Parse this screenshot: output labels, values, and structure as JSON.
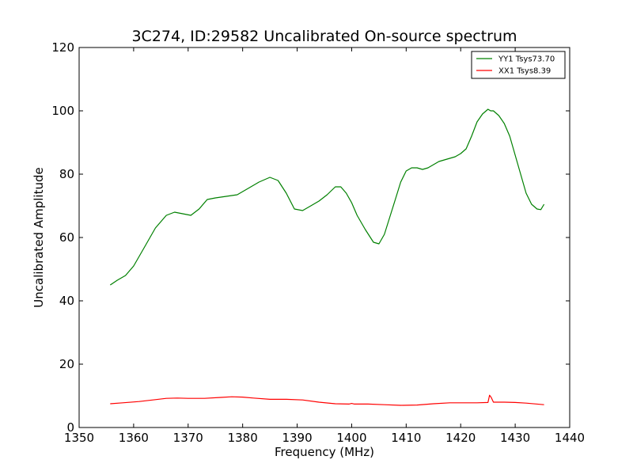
{
  "chart_data": {
    "type": "line",
    "title": "3C274, ID:29582 Uncalibrated On-source spectrum",
    "xlabel": "Frequency (MHz)",
    "ylabel": "Uncalibrated Amplitude",
    "xlim": [
      1350,
      1440
    ],
    "ylim": [
      0,
      120
    ],
    "x_ticks": [
      "1350",
      "1360",
      "1370",
      "1380",
      "1390",
      "1400",
      "1410",
      "1420",
      "1430",
      "1440"
    ],
    "y_ticks": [
      "0",
      "20",
      "40",
      "60",
      "80",
      "100",
      "120"
    ],
    "grid": false,
    "legend_position": "top-right",
    "series": [
      {
        "name": "YY1 Tsys73.70",
        "color": "#008000",
        "x": [
          1355.7,
          1357,
          1358.5,
          1360,
          1362,
          1364,
          1366,
          1367.5,
          1369,
          1370.5,
          1372,
          1373.5,
          1375,
          1377,
          1379,
          1381,
          1383,
          1385,
          1386.5,
          1388,
          1389.5,
          1391,
          1392.5,
          1394,
          1395.5,
          1397,
          1398,
          1399,
          1400,
          1401,
          1402.5,
          1404,
          1405,
          1406,
          1407,
          1408,
          1409,
          1410,
          1411,
          1412,
          1413,
          1414,
          1415,
          1416,
          1418,
          1419,
          1420,
          1421,
          1422,
          1423,
          1424,
          1425,
          1425.5,
          1426,
          1427,
          1428,
          1429,
          1430,
          1431,
          1432,
          1433,
          1434,
          1434.7,
          1435.3
        ],
        "values": [
          45,
          46.5,
          48,
          51,
          57,
          63,
          67,
          68,
          67.5,
          67,
          69,
          72,
          72.5,
          73,
          73.5,
          75.5,
          77.5,
          79,
          78,
          74,
          69,
          68.5,
          70,
          71.5,
          73.5,
          76,
          76,
          74,
          71,
          67,
          62.5,
          58.5,
          58,
          61,
          66.5,
          72,
          77.5,
          81,
          82,
          82,
          81.5,
          82,
          83,
          84,
          85,
          85.5,
          86.5,
          88,
          92,
          96.5,
          99,
          100.5,
          100,
          100,
          98.5,
          96,
          92,
          86,
          80,
          74,
          70.5,
          69,
          68.8,
          70.5
        ]
      },
      {
        "name": "XX1 Tsys8.39",
        "color": "#ff0000",
        "x": [
          1355.7,
          1358,
          1361,
          1364,
          1366,
          1368,
          1370,
          1373,
          1376,
          1378,
          1380,
          1382,
          1385,
          1388,
          1391,
          1394,
          1397,
          1399.5,
          1400,
          1400.5,
          1403,
          1406,
          1409,
          1412,
          1415,
          1418,
          1421,
          1423,
          1425,
          1425.3,
          1425.6,
          1426,
          1428,
          1430,
          1432,
          1435.3
        ],
        "values": [
          7.5,
          7.8,
          8.2,
          8.8,
          9.2,
          9.3,
          9.2,
          9.2,
          9.5,
          9.7,
          9.6,
          9.3,
          8.9,
          8.9,
          8.7,
          8.0,
          7.5,
          7.4,
          7.6,
          7.4,
          7.4,
          7.2,
          7.0,
          7.1,
          7.5,
          7.8,
          7.8,
          7.8,
          7.9,
          10.2,
          9.5,
          8.0,
          8.0,
          7.9,
          7.7,
          7.2
        ]
      }
    ]
  }
}
